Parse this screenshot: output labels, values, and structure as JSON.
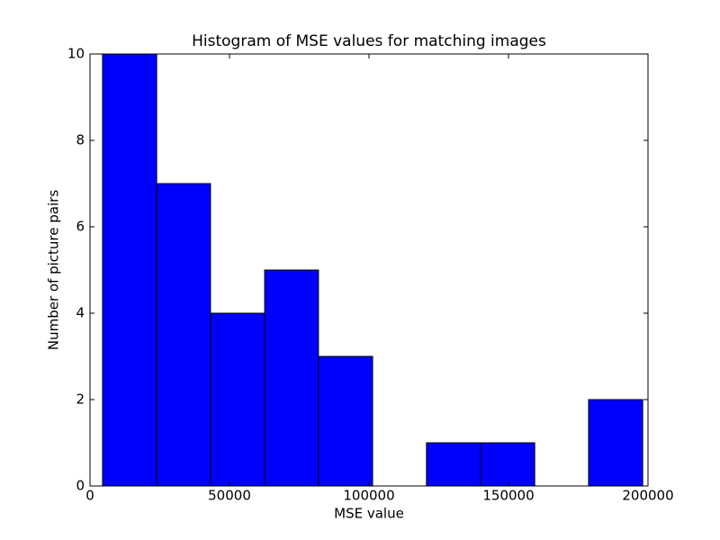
{
  "chart_data": {
    "type": "histogram",
    "title": "Histogram of MSE values for matching images",
    "x_label": "MSE value",
    "y_label": "Number of picture pairs",
    "bins": [
      4500,
      23900,
      43200,
      62600,
      81900,
      101300,
      120600,
      140000,
      159400,
      178700,
      198100
    ],
    "values": [
      10,
      7,
      4,
      5,
      3,
      0,
      1,
      1,
      0,
      2
    ],
    "color": "#0000ff",
    "xlim": [
      0,
      200000
    ],
    "xticks": [
      0,
      50000,
      100000,
      150000,
      200000
    ],
    "ylim": [
      0,
      10
    ],
    "yticks": [
      0,
      2,
      4,
      6,
      8,
      10
    ]
  }
}
